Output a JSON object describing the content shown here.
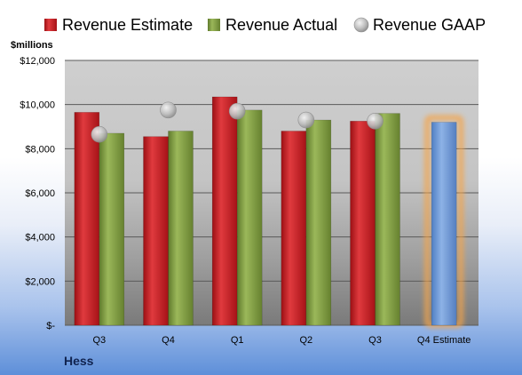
{
  "chart_data": {
    "type": "bar",
    "title": "",
    "unit_label": "$millions",
    "company": "Hess",
    "categories": [
      "Q3",
      "Q4",
      "Q1",
      "Q2",
      "Q3",
      "Q4 Estimate"
    ],
    "series": [
      {
        "name": "Revenue Estimate",
        "kind": "bar",
        "color": "#c0181e",
        "values": [
          9650,
          8550,
          10350,
          8800,
          9250,
          null
        ]
      },
      {
        "name": "Revenue Actual",
        "kind": "bar",
        "color": "#77933c",
        "values": [
          8700,
          8800,
          9750,
          9300,
          9600,
          null
        ]
      },
      {
        "name": "Revenue GAAP",
        "kind": "marker",
        "color": "#b8b8b8",
        "values": [
          8650,
          9750,
          9700,
          9300,
          9250,
          null
        ]
      }
    ],
    "estimate_bar": {
      "category": "Q4 Estimate",
      "value": 9200,
      "color": "#6f9ad8",
      "glow_color": "#f5a44a"
    },
    "y_ticks": [
      "$-",
      "$2,000",
      "$4,000",
      "$6,000",
      "$8,000",
      "$10,000",
      "$12,000"
    ],
    "ylim": [
      0,
      12000
    ],
    "grid": true,
    "legend_position": "top"
  }
}
